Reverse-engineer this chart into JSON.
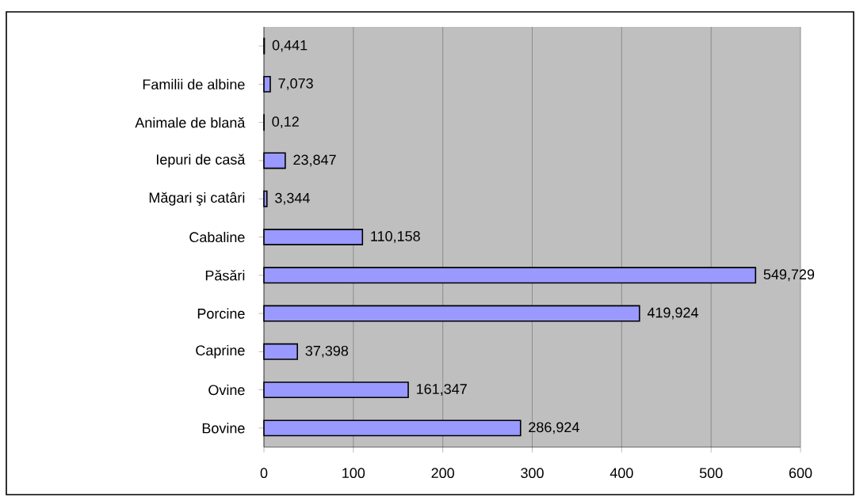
{
  "chart_data": {
    "type": "bar",
    "orientation": "horizontal",
    "categories": [
      null,
      "Familii de albine",
      "Animale de blană",
      "Iepuri de casă",
      "Măgari şi catâri",
      "Cabaline",
      "Păsări",
      "Porcine",
      "Caprine",
      "Ovine",
      "Bovine"
    ],
    "values": [
      0.441,
      7.073,
      0.12,
      23.847,
      3.344,
      110.158,
      549.729,
      419.924,
      37.398,
      161.347,
      286.924
    ],
    "value_labels": [
      "0,441",
      "7,073",
      "0,12",
      "23,847",
      "3,344",
      "110,158",
      "549,729",
      "419,924",
      "37,398",
      "161,347",
      "286,924"
    ],
    "color": "#9999ff",
    "xlim": [
      0,
      600
    ],
    "xticks": [
      0,
      100,
      200,
      300,
      400,
      500,
      600
    ],
    "grid": "x"
  }
}
